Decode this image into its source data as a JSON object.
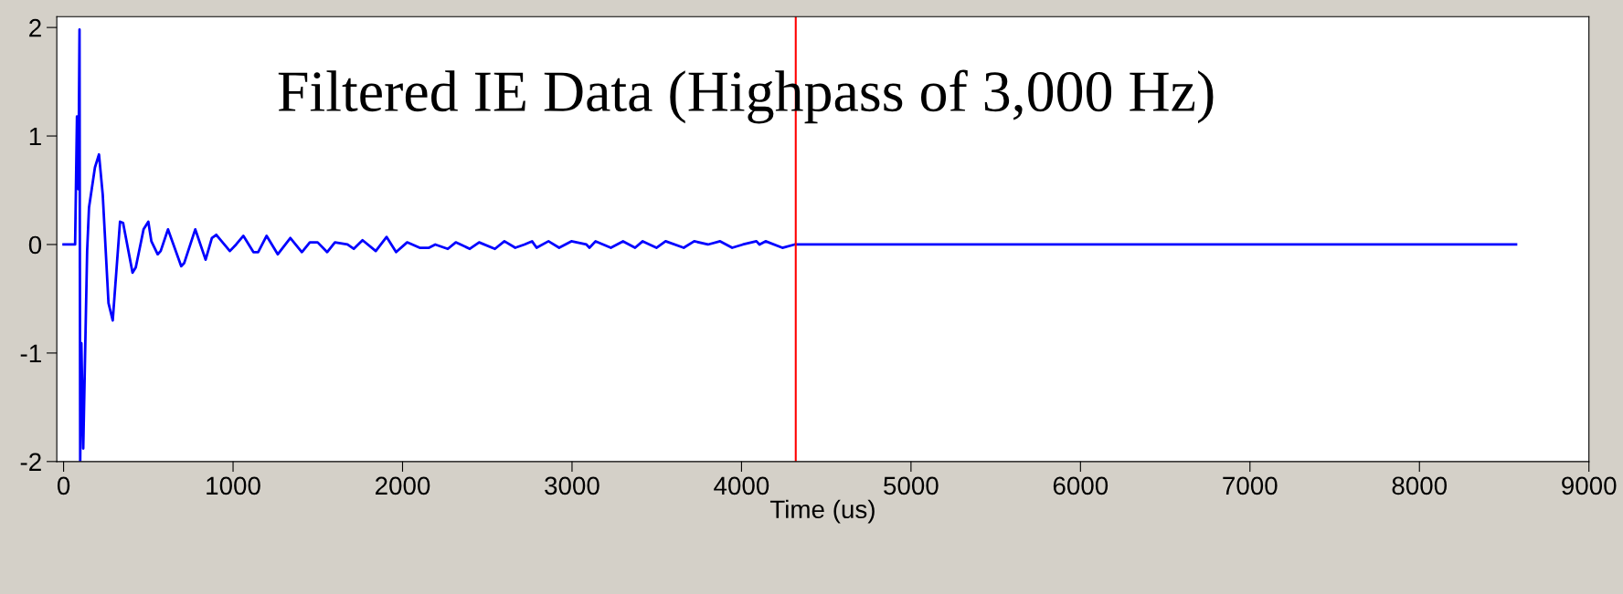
{
  "chart_data": {
    "type": "line",
    "title": "Filtered IE Data (Highpass of 3,000 Hz)",
    "xlabel": "Time (us)",
    "xlim": [
      -40,
      9000
    ],
    "xticks": [
      0,
      1000,
      2000,
      3000,
      4000,
      5000,
      6000,
      7000,
      8000,
      9000
    ],
    "ylim": [
      -2,
      2.1
    ],
    "yticks": [
      -2,
      -1,
      0,
      1,
      2
    ],
    "grid": false,
    "legend": false,
    "marker": "none",
    "line_style": "solid",
    "ref_lines": [
      {
        "axis": "x",
        "value": 4320,
        "color": "#ff0000"
      }
    ],
    "series": [
      {
        "color": "#0000ff",
        "x": [
          0,
          68,
          79,
          87,
          94,
          98,
          105,
          116,
          139,
          150,
          185,
          209,
          231,
          265,
          290,
          333,
          351,
          407,
          426,
          472,
          500,
          518,
          555,
          573,
          616,
          694,
          712,
          777,
          838,
          875,
          901,
          981,
          1018,
          1061,
          1120,
          1148,
          1198,
          1264,
          1338,
          1406,
          1453,
          1499,
          1555,
          1601,
          1675,
          1712,
          1764,
          1842,
          1906,
          1962,
          2027,
          2101,
          2156,
          2193,
          2267,
          2314,
          2397,
          2452,
          2545,
          2601,
          2665,
          2719,
          2764,
          2791,
          2861,
          2924,
          2996,
          3085,
          3103,
          3139,
          3229,
          3301,
          3372,
          3417,
          3498,
          3552,
          3659,
          3721,
          3802,
          3874,
          3945,
          4008,
          4088,
          4106,
          4142,
          4241,
          4313,
          8570
        ],
        "values": [
          0,
          0,
          1.18,
          0.51,
          1.98,
          -2.0,
          -0.91,
          -1.88,
          -0.06,
          0.34,
          0.71,
          0.83,
          0.46,
          -0.54,
          -0.7,
          0.21,
          0.2,
          -0.26,
          -0.21,
          0.14,
          0.21,
          0.03,
          -0.09,
          -0.06,
          0.14,
          -0.2,
          -0.17,
          0.14,
          -0.14,
          0.06,
          0.09,
          -0.06,
          0,
          0.08,
          -0.07,
          -0.07,
          0.08,
          -0.09,
          0.06,
          -0.07,
          0.02,
          0.02,
          -0.07,
          0.02,
          0,
          -0.04,
          0.04,
          -0.06,
          0.07,
          -0.07,
          0.02,
          -0.03,
          -0.03,
          0,
          -0.04,
          0.02,
          -0.04,
          0.02,
          -0.04,
          0.03,
          -0.03,
          0,
          0.03,
          -0.03,
          0.03,
          -0.03,
          0.03,
          0,
          -0.03,
          0.03,
          -0.03,
          0.03,
          -0.03,
          0.03,
          -0.03,
          0.03,
          -0.03,
          0.03,
          0,
          0.03,
          -0.03,
          0,
          0.03,
          0,
          0.03,
          -0.03,
          0,
          0
        ]
      }
    ]
  }
}
